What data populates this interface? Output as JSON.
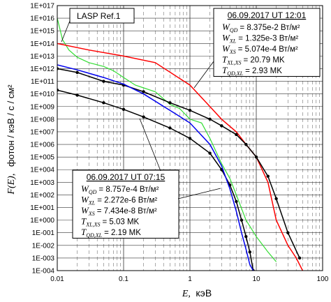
{
  "chart_data": {
    "type": "line",
    "title": "",
    "xlabel": "E, кэВ",
    "ylabel": "F(E), фотон / кэВ / с / см²",
    "x_scale": "log",
    "y_scale": "log",
    "xlim": [
      0.01,
      100
    ],
    "ylim": [
      0.0001,
      1e+17
    ],
    "x_ticks": [
      "0.01",
      "0.1",
      "1",
      "10",
      "100"
    ],
    "y_ticks": [
      "1E+017",
      "1E+016",
      "1E+015",
      "1E+014",
      "1E+013",
      "1E+012",
      "1E+011",
      "1E+010",
      "1E+009",
      "1E+008",
      "1E+007",
      "1E+006",
      "1E+005",
      "1E+004",
      "1E+003",
      "1E+002",
      "1E+001",
      "1E+000",
      "1E-001",
      "1E-002",
      "1E-003",
      "1E-004"
    ],
    "grid": true,
    "series": [
      {
        "name": "LASP Ref.1",
        "color": "#33dd33",
        "x": [
          0.01,
          0.012,
          0.015,
          0.02,
          0.03,
          0.05,
          0.07,
          0.1,
          0.15,
          0.2,
          0.3,
          0.5,
          0.7,
          1,
          1.5,
          2,
          3,
          4,
          5,
          7,
          10,
          15,
          20
        ],
        "y": [
          1e+16,
          200000000000000.0,
          30000000000000.0,
          8000000000000.0,
          3000000000000.0,
          1500000000000.0,
          700000000000.0,
          200000000000.0,
          50000000000.0,
          30000000000.0,
          15000000000.0,
          1500000000.0,
          700000000.0,
          100000000.0,
          50000000.0,
          3000000.0,
          30000.0,
          2000.0,
          100,
          1,
          0.05,
          0.003,
          0.0005
        ]
      },
      {
        "name": "",
        "color": "#ff0000",
        "x": [
          0.01,
          0.03,
          0.1,
          0.3,
          1,
          2,
          3,
          5,
          7,
          10,
          15,
          20,
          30,
          40,
          50
        ],
        "y": [
          100000000000000.0,
          30000000000000.0,
          10000000000000.0,
          3000000000000.0,
          50000000000.0,
          1000000000.0,
          100000000.0,
          10000000.0,
          1000000.0,
          100000.0,
          1000.0,
          1,
          0.01,
          0.001,
          0.0001
        ]
      },
      {
        "name": "",
        "color": "#000000",
        "markers": true,
        "x": [
          0.01,
          0.02,
          0.05,
          0.1,
          0.2,
          0.5,
          1,
          2,
          3,
          5,
          7,
          10,
          15,
          20,
          30,
          45
        ],
        "y": [
          1000000000000.0,
          500000000000.0,
          100000000000.0,
          50000000000.0,
          15000000000.0,
          2000000000.0,
          500000000.0,
          100000000.0,
          30000000.0,
          6000000.0,
          1000000.0,
          100000.0,
          3000.0,
          50,
          0.1,
          0.001
        ]
      },
      {
        "name": "",
        "color": "#000000",
        "markers": true,
        "x": [
          0.01,
          0.02,
          0.05,
          0.1,
          0.2,
          0.5,
          1,
          2,
          3,
          4,
          5,
          6,
          7,
          8,
          9
        ],
        "y": [
          20000000000.0,
          8000000000.0,
          2000000000.0,
          600000000.0,
          150000000.0,
          20000000.0,
          3000000.0,
          200000.0,
          10000.0,
          600,
          30,
          1,
          0.05,
          0.003,
          0.0001
        ]
      },
      {
        "name": "",
        "color": "#0000ee",
        "x": [
          0.01,
          0.02,
          0.05,
          0.1,
          0.2,
          0.5,
          1,
          2,
          3,
          4,
          5,
          6,
          7,
          8,
          9
        ],
        "y": [
          2000000000000.0,
          800000000000.0,
          200000000000.0,
          60000000000.0,
          10000000000.0,
          500000000.0,
          50000000.0,
          1000000.0,
          20000.0,
          300,
          5,
          0.1,
          0.005,
          0.0003,
          0.0001
        ]
      }
    ],
    "annotations": [
      {
        "label": "LASP Ref.1"
      },
      {
        "header": "06.09.2017  UT 12:01",
        "lines": [
          "W_QD = 8.375e-2 Вт/м²",
          "W_XL = 1.325e-3 Вт/м²",
          "W_XS = 5.074e-4 Вт/м²",
          "T_XL,XS = 20.79 MK",
          "T_QD,XL = 2.93 MK"
        ]
      },
      {
        "header": "06.09.2017  UT 07:15",
        "lines": [
          "W_QD = 8.757e-4 Вт/м²",
          "W_XL = 2.272e-6 Вт/м²",
          "W_XS = 7.434e-8 Вт/м²",
          "T_XL,XS = 5.03 MK",
          "T_QD,XL = 2.19 MK"
        ]
      }
    ]
  },
  "annotation_top": {
    "header": "06.09.2017  UT 12:01",
    "sym": [
      "W",
      "W",
      "W",
      "T",
      "T"
    ],
    "sub": [
      "QD",
      "XL",
      "XS",
      "XL,XS",
      "QD,XL"
    ],
    "val": [
      "= 8.375e-2 Вт/м²",
      "= 1.325e-3 Вт/м²",
      "= 5.074e-4 Вт/м²",
      "= 20.79 MK",
      "=   2.93 MK"
    ]
  },
  "annotation_bottom": {
    "header": "06.09.2017  UT 07:15",
    "sym": [
      "W",
      "W",
      "W",
      "T",
      "T"
    ],
    "sub": [
      "QD",
      "XL",
      "XS",
      "XL,XS",
      "QD,XL"
    ],
    "val": [
      "= 8.757e-4 Вт/м²",
      "= 2.272e-6 Вт/м²",
      "= 7.434e-8 Вт/м²",
      "= 5.03 MK",
      "= 2.19 MK"
    ]
  },
  "legend_label": "LASP Ref.1",
  "y_title_sym": "F(E),",
  "y_title_rest": "фотон / кэВ / с / см²",
  "x_title_sym": "E,",
  "x_title_rest": "кэВ"
}
